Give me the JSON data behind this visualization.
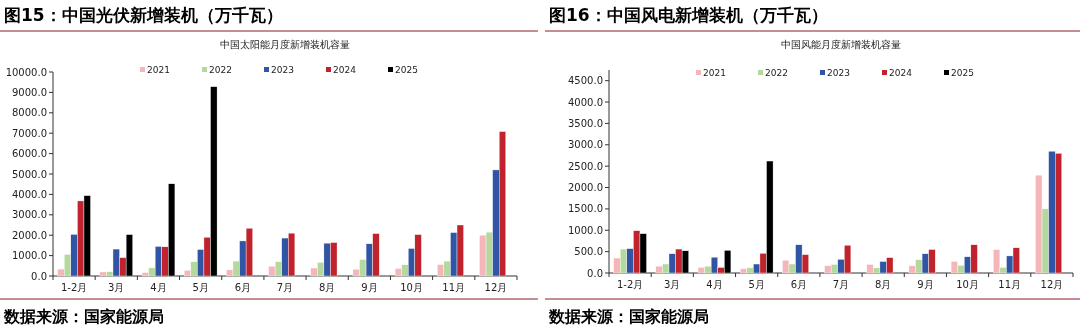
{
  "chart_data": [
    {
      "type": "bar",
      "title": "图15：中国光伏新增装机（万千瓦）",
      "subtitle": "中国太阳能月度新增装机容量",
      "categories": [
        "1-2月",
        "3月",
        "4月",
        "5月",
        "6月",
        "7月",
        "8月",
        "9月",
        "10月",
        "11月",
        "12月"
      ],
      "series": [
        {
          "name": "2021",
          "color": "#f4b6b8",
          "values": [
            340,
            200,
            170,
            280,
            300,
            480,
            390,
            330,
            370,
            560,
            2000
          ]
        },
        {
          "name": "2022",
          "color": "#b5d99c",
          "values": [
            1060,
            210,
            400,
            700,
            730,
            700,
            670,
            810,
            550,
            730,
            2150
          ]
        },
        {
          "name": "2023",
          "color": "#2f55a4",
          "values": [
            2040,
            1320,
            1450,
            1300,
            1720,
            1860,
            1610,
            1580,
            1350,
            2130,
            5200
          ]
        },
        {
          "name": "2024",
          "color": "#c0232c",
          "values": [
            3680,
            900,
            1430,
            1900,
            2340,
            2100,
            1640,
            2080,
            2030,
            2500,
            7080
          ]
        },
        {
          "name": "2025",
          "color": "#000000",
          "values": [
            3940,
            2030,
            4520,
            9280,
            null,
            null,
            null,
            null,
            null,
            null,
            null
          ]
        }
      ],
      "ylim": [
        0,
        10000
      ],
      "yticks": [
        {
          "value": 0,
          "label": "0.0"
        },
        {
          "value": 1000,
          "label": "1000.0"
        },
        {
          "value": 2000,
          "label": "2000.0"
        },
        {
          "value": 3000,
          "label": "3000.0"
        },
        {
          "value": 4000,
          "label": "4000.0"
        },
        {
          "value": 5000,
          "label": "5000.0"
        },
        {
          "value": 6000,
          "label": "6000.0"
        },
        {
          "value": 7000,
          "label": "7000.0"
        },
        {
          "value": 8000,
          "label": "8000.0"
        },
        {
          "value": 9000,
          "label": "9000.0"
        },
        {
          "value": 10000,
          "label": "10000.0"
        }
      ],
      "legend": "top",
      "grid": false,
      "annotations": [
        "数据来源：国家能源局"
      ]
    },
    {
      "type": "bar",
      "title": "图16：中国风电新增装机（万千瓦）",
      "subtitle": "中国风能月度新增装机容量",
      "categories": [
        "1-2月",
        "3月",
        "4月",
        "5月",
        "6月",
        "7月",
        "8月",
        "9月",
        "10月",
        "11月",
        "12月"
      ],
      "series": [
        {
          "name": "2021",
          "color": "#f4b6b8",
          "values": [
            350,
            160,
            130,
            100,
            300,
            170,
            200,
            170,
            270,
            550,
            2290
          ]
        },
        {
          "name": "2022",
          "color": "#b5d99c",
          "values": [
            560,
            210,
            160,
            120,
            210,
            200,
            120,
            310,
            180,
            130,
            1500
          ]
        },
        {
          "name": "2023",
          "color": "#2f55a4",
          "values": [
            570,
            450,
            370,
            210,
            660,
            320,
            270,
            450,
            380,
            400,
            2850
          ]
        },
        {
          "name": "2024",
          "color": "#c0232c",
          "values": [
            990,
            560,
            130,
            460,
            430,
            650,
            360,
            550,
            660,
            590,
            2800
          ]
        },
        {
          "name": "2025",
          "color": "#000000",
          "values": [
            920,
            520,
            530,
            2620,
            null,
            null,
            null,
            null,
            null,
            null,
            null
          ]
        }
      ],
      "ylim": [
        0,
        4750
      ],
      "yticks": [
        {
          "value": 0,
          "label": "0.0"
        },
        {
          "value": 500,
          "label": "500.0"
        },
        {
          "value": 1000,
          "label": "1000.0"
        },
        {
          "value": 1500,
          "label": "1500.0"
        },
        {
          "value": 2000,
          "label": "2000.0"
        },
        {
          "value": 2500,
          "label": "2500.0"
        },
        {
          "value": 3000,
          "label": "3000.0"
        },
        {
          "value": 3500,
          "label": "3500.0"
        },
        {
          "value": 4000,
          "label": "4000.0"
        },
        {
          "value": 4500,
          "label": "4500.0"
        }
      ],
      "legend": "top",
      "grid": false,
      "annotations": [
        "数据来源：国家能源局"
      ]
    }
  ]
}
